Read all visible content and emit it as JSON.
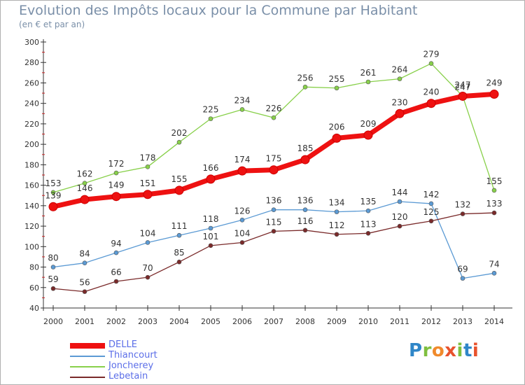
{
  "title": "Evolution des Impôts locaux pour la Commune par Habitant",
  "subtitle": "(en € et par an)",
  "logo": {
    "text": "Proxiti",
    "letter_colors": [
      "#2f86c8",
      "#7fbf3f",
      "#f08a2c",
      "#e8522d",
      "#7fbf3f",
      "#2f86c8",
      "#e8522d"
    ]
  },
  "chart_data": {
    "type": "line",
    "title": "Evolution des Impôts locaux pour la Commune par Habitant",
    "subtitle": "(en € et par an)",
    "x": [
      "2000",
      "2001",
      "2002",
      "2003",
      "2004",
      "2005",
      "2006",
      "2007",
      "2008",
      "2009",
      "2010",
      "2011",
      "2012",
      "2013",
      "2014"
    ],
    "ylim": [
      40,
      300
    ],
    "yticks": [
      40,
      60,
      80,
      100,
      120,
      140,
      160,
      180,
      200,
      220,
      240,
      260,
      280,
      300
    ],
    "grid": false,
    "legend_position": "bottom-left",
    "series": [
      {
        "name": "Joncherey",
        "color": "#88d04a",
        "values": [
          153,
          162,
          172,
          178,
          202,
          225,
          234,
          226,
          256,
          255,
          261,
          264,
          279,
          247,
          155
        ]
      },
      {
        "name": "Thiancourt",
        "color": "#5b9ad4",
        "values": [
          80,
          84,
          94,
          104,
          111,
          118,
          126,
          136,
          136,
          134,
          135,
          144,
          142,
          69,
          74
        ]
      },
      {
        "name": "Lebetain",
        "color": "#7a2a2a",
        "values": [
          59,
          56,
          66,
          70,
          85,
          101,
          104,
          115,
          116,
          112,
          113,
          120,
          125,
          132,
          133
        ]
      },
      {
        "name": "DELLE",
        "color": "#ee1111",
        "values": [
          139,
          146,
          149,
          151,
          155,
          166,
          174,
          175,
          185,
          206,
          209,
          230,
          240,
          247,
          249
        ]
      }
    ],
    "legend_order": [
      "DELLE",
      "Thiancourt",
      "Joncherey",
      "Lebetain"
    ]
  }
}
